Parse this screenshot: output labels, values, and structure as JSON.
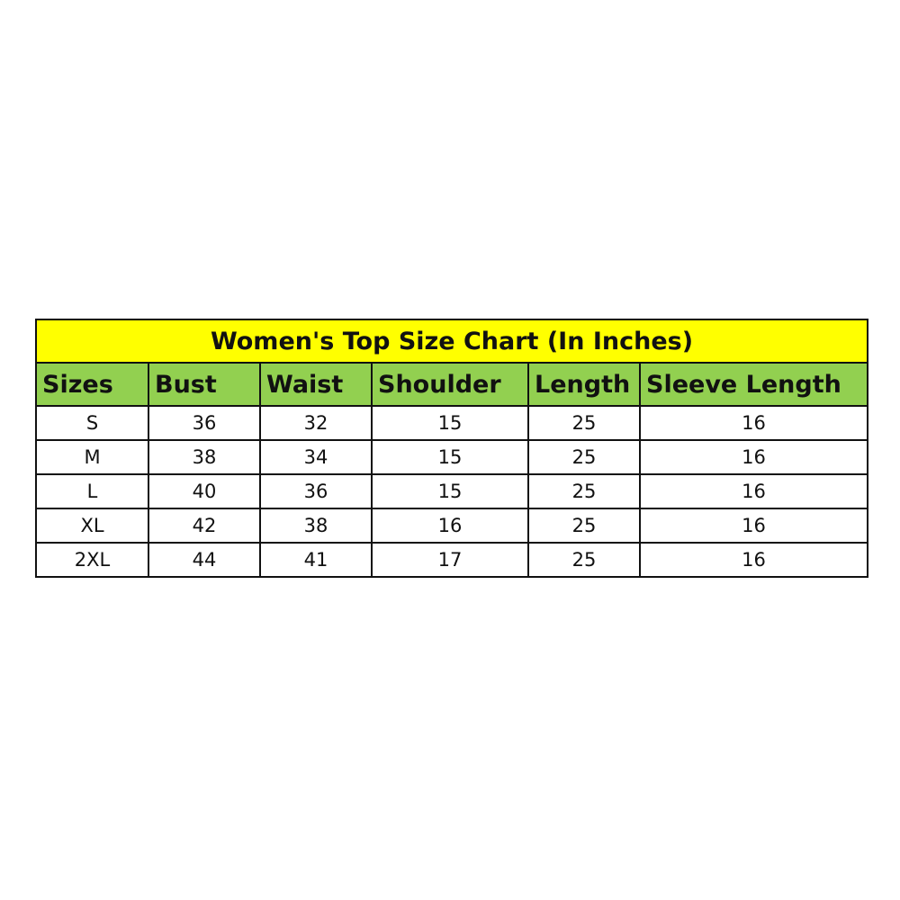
{
  "title": "Women's Top Size Chart (In Inches)",
  "colors": {
    "title_bg": "#FFFF00",
    "header_bg": "#92D050"
  },
  "headers": [
    "Sizes",
    "Bust",
    "Waist",
    "Shoulder",
    "Length",
    "Sleeve Length"
  ],
  "rows": [
    [
      "S",
      "36",
      "32",
      "15",
      "25",
      "16"
    ],
    [
      "M",
      "38",
      "34",
      "15",
      "25",
      "16"
    ],
    [
      "L",
      "40",
      "36",
      "15",
      "25",
      "16"
    ],
    [
      "XL",
      "42",
      "38",
      "16",
      "25",
      "16"
    ],
    [
      "2XL",
      "44",
      "41",
      "17",
      "25",
      "16"
    ]
  ]
}
